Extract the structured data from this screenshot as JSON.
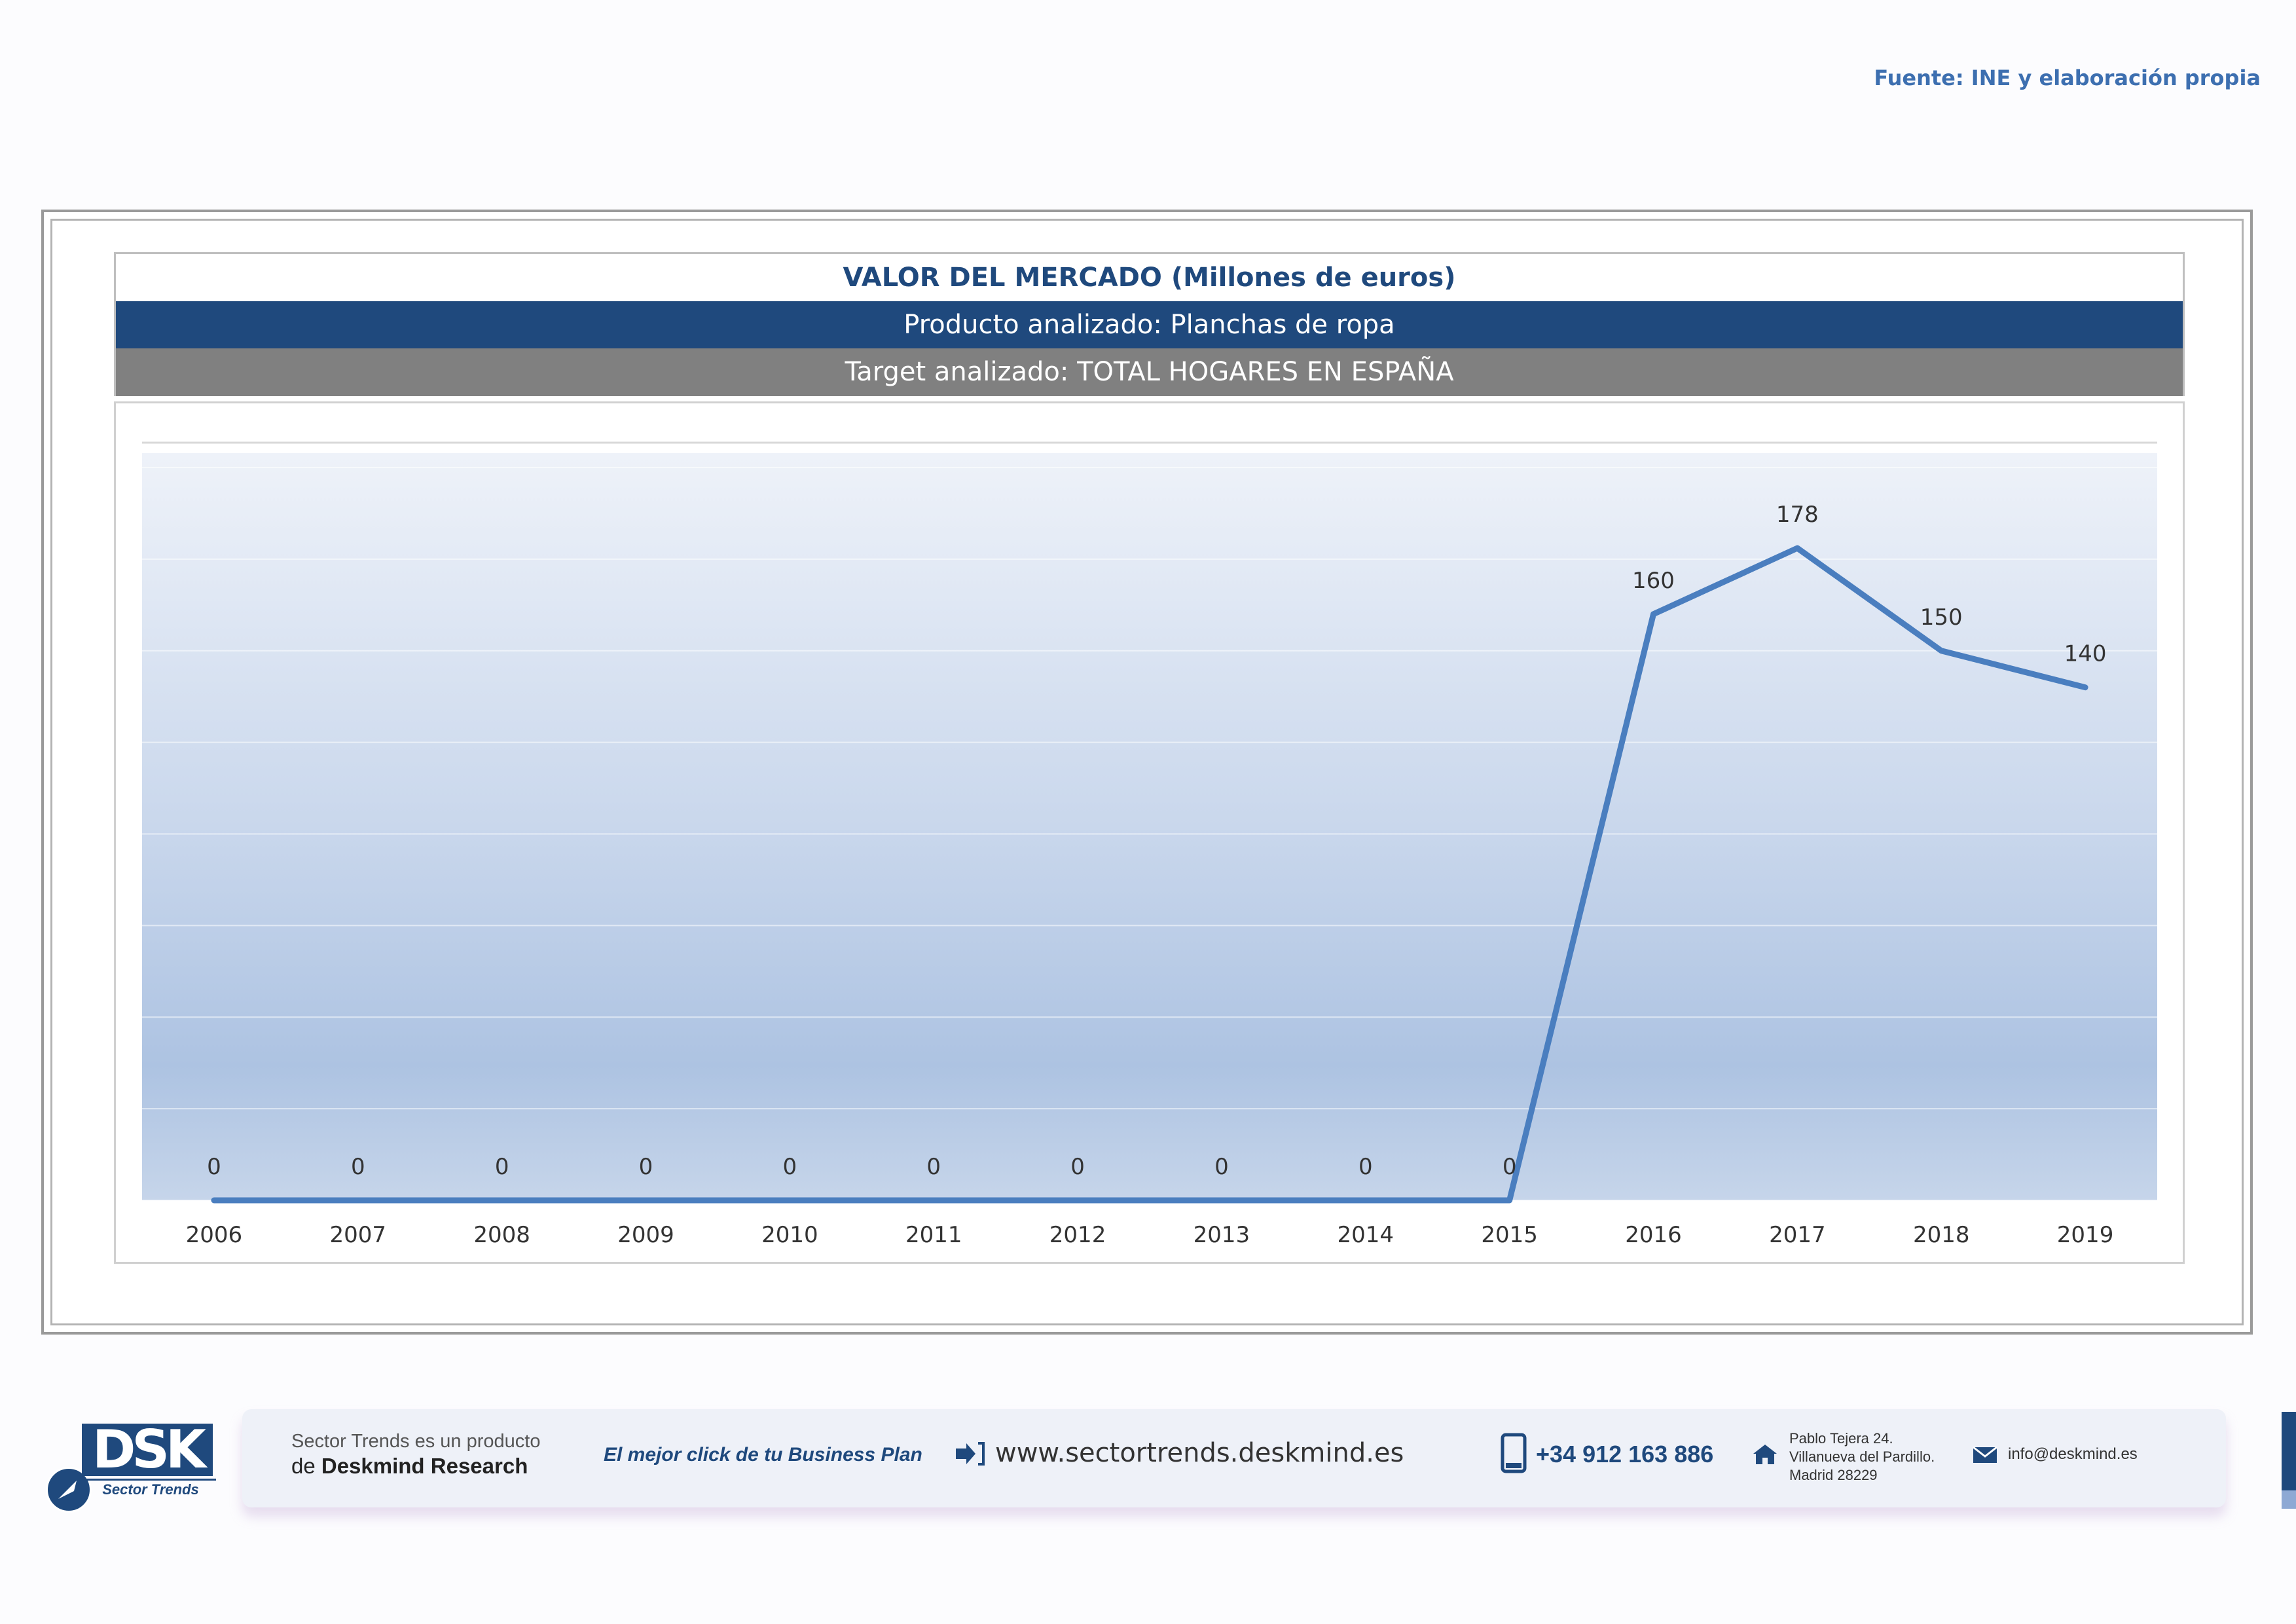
{
  "header": {
    "source": "Fuente: INE y elaboración propia"
  },
  "titles": {
    "main": "VALOR DEL MERCADO (Millones de euros)",
    "product": "Producto analizado: Planchas de ropa",
    "target": "Target analizado: TOTAL HOGARES EN ESPAÑA"
  },
  "chart_data": {
    "type": "line",
    "title": "VALOR DEL MERCADO (Millones de euros)",
    "xlabel": "",
    "ylabel": "",
    "categories": [
      "2006",
      "2007",
      "2008",
      "2009",
      "2010",
      "2011",
      "2012",
      "2013",
      "2014",
      "2015",
      "2016",
      "2017",
      "2018",
      "2019"
    ],
    "series": [
      {
        "values": [
          0,
          0,
          0,
          0,
          0,
          0,
          0,
          0,
          0,
          0,
          160,
          178,
          150,
          140
        ]
      }
    ],
    "data_labels": [
      "0",
      "0",
      "0",
      "0",
      "0",
      "0",
      "0",
      "0",
      "0",
      "0",
      "160",
      "178",
      "150",
      "140"
    ],
    "ylim": [
      0,
      200
    ],
    "grid": true,
    "legend": "none",
    "line_color": "#4a7ebf",
    "plot_background": "gradient light-to-mid blue"
  },
  "footer": {
    "logo_text": "DSK",
    "logo_sub": "Sector Trends",
    "product_line1": "Sector Trends es un producto",
    "product_line2_prefix": "de ",
    "product_line2_brand": "Deskmind Research",
    "slogan": "El mejor click de tu Business Plan",
    "website": "www.sectortrends.deskmind.es",
    "phone": "+34 912 163 886",
    "address_line1": "Pablo Tejera 24.",
    "address_line2": "Villanueva del Pardillo.",
    "address_line3": "Madrid 28229",
    "email": "info@deskmind.es",
    "icons": [
      "arrow-right-icon",
      "phone-icon",
      "home-icon",
      "mail-icon"
    ],
    "accent": "#1f497d"
  }
}
